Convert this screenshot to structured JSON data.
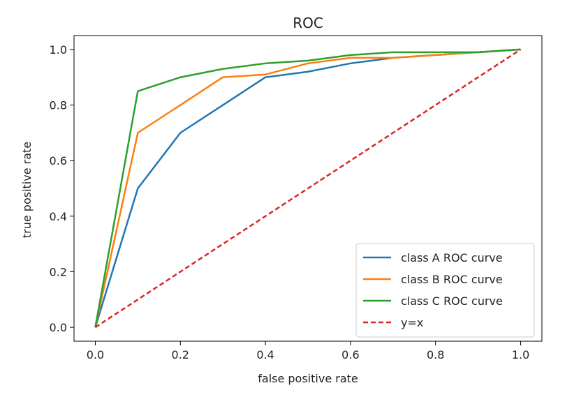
{
  "chart_data": {
    "type": "line",
    "title": "ROC",
    "xlabel": "false positive rate",
    "ylabel": "true positive rate",
    "xlim": [
      -0.05,
      1.05
    ],
    "ylim": [
      -0.05,
      1.05
    ],
    "xticks": [
      0.0,
      0.2,
      0.4,
      0.6,
      0.8,
      1.0
    ],
    "yticks": [
      0.0,
      0.2,
      0.4,
      0.6,
      0.8,
      1.0
    ],
    "xtick_labels": [
      "0.0",
      "0.2",
      "0.4",
      "0.6",
      "0.8",
      "1.0"
    ],
    "ytick_labels": [
      "0.0",
      "0.2",
      "0.4",
      "0.6",
      "0.8",
      "1.0"
    ],
    "grid": false,
    "legend_position": "lower-right",
    "series": [
      {
        "name": "class A ROC curve",
        "color": "#1f77b4",
        "style": "solid",
        "x": [
          0.0,
          0.1,
          0.2,
          0.3,
          0.4,
          0.5,
          0.6,
          0.7,
          0.8,
          0.9,
          1.0
        ],
        "y": [
          0.0,
          0.5,
          0.7,
          0.8,
          0.9,
          0.92,
          0.95,
          0.97,
          0.98,
          0.99,
          1.0
        ]
      },
      {
        "name": "class B ROC curve",
        "color": "#ff7f0e",
        "style": "solid",
        "x": [
          0.0,
          0.1,
          0.2,
          0.3,
          0.4,
          0.5,
          0.6,
          0.7,
          0.8,
          0.9,
          1.0
        ],
        "y": [
          0.0,
          0.7,
          0.8,
          0.9,
          0.91,
          0.95,
          0.97,
          0.97,
          0.98,
          0.99,
          1.0
        ]
      },
      {
        "name": "class C ROC curve",
        "color": "#2ca02c",
        "style": "solid",
        "x": [
          0.0,
          0.1,
          0.2,
          0.3,
          0.4,
          0.5,
          0.6,
          0.7,
          0.8,
          0.9,
          1.0
        ],
        "y": [
          0.0,
          0.85,
          0.9,
          0.93,
          0.95,
          0.96,
          0.98,
          0.99,
          0.99,
          0.99,
          1.0
        ]
      },
      {
        "name": "y=x",
        "color": "#d62728",
        "style": "dashed",
        "x": [
          0.0,
          1.0
        ],
        "y": [
          0.0,
          1.0
        ]
      }
    ]
  }
}
